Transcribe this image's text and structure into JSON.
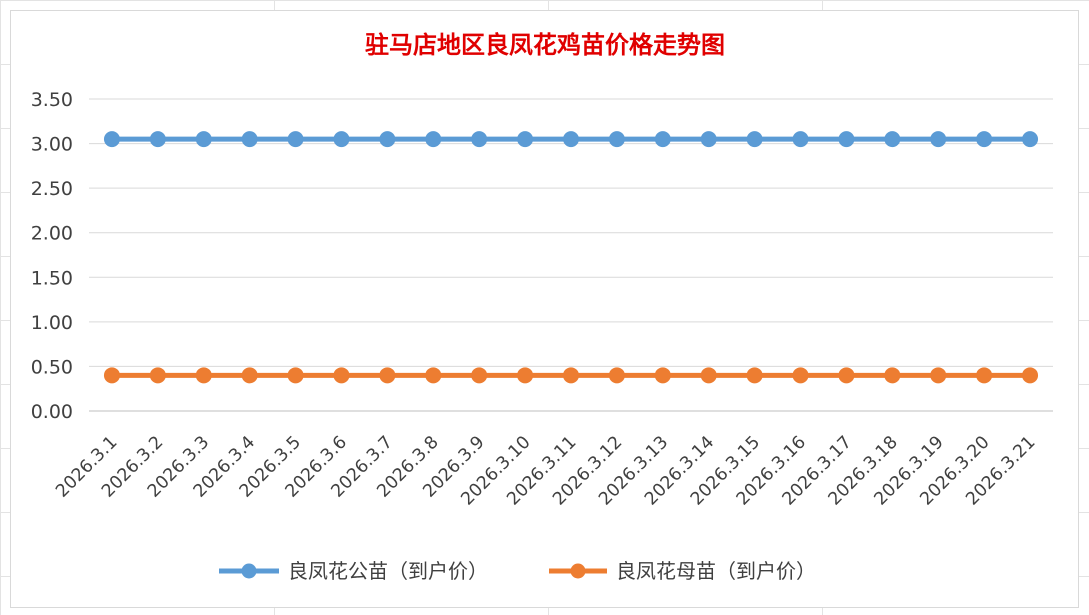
{
  "chart_data": {
    "type": "line",
    "title": "驻马店地区良凤花鸡苗价格走势图",
    "xlabel": "",
    "ylabel": "",
    "categories": [
      "2026.3.1",
      "2026.3.2",
      "2026.3.3",
      "2026.3.4",
      "2026.3.5",
      "2026.3.6",
      "2026.3.7",
      "2026.3.8",
      "2026.3.9",
      "2026.3.10",
      "2026.3.11",
      "2026.3.12",
      "2026.3.13",
      "2026.3.14",
      "2026.3.15",
      "2026.3.16",
      "2026.3.17",
      "2026.3.18",
      "2026.3.19",
      "2026.3.20",
      "2026.3.21"
    ],
    "ylim": [
      0,
      3.5
    ],
    "yticks": [
      "0.00",
      "0.50",
      "1.00",
      "1.50",
      "2.00",
      "2.50",
      "3.00",
      "3.50"
    ],
    "grid": true,
    "legend_position": "bottom",
    "series": [
      {
        "name": "良凤花公苗（到户价）",
        "color": "#5b9bd5",
        "values": [
          3.05,
          3.05,
          3.05,
          3.05,
          3.05,
          3.05,
          3.05,
          3.05,
          3.05,
          3.05,
          3.05,
          3.05,
          3.05,
          3.05,
          3.05,
          3.05,
          3.05,
          3.05,
          3.05,
          3.05,
          3.05
        ]
      },
      {
        "name": "良凤花母苗（到户价）",
        "color": "#ed7d31",
        "values": [
          0.4,
          0.4,
          0.4,
          0.4,
          0.4,
          0.4,
          0.4,
          0.4,
          0.4,
          0.4,
          0.4,
          0.4,
          0.4,
          0.4,
          0.4,
          0.4,
          0.4,
          0.4,
          0.4,
          0.4,
          0.4
        ]
      }
    ]
  }
}
